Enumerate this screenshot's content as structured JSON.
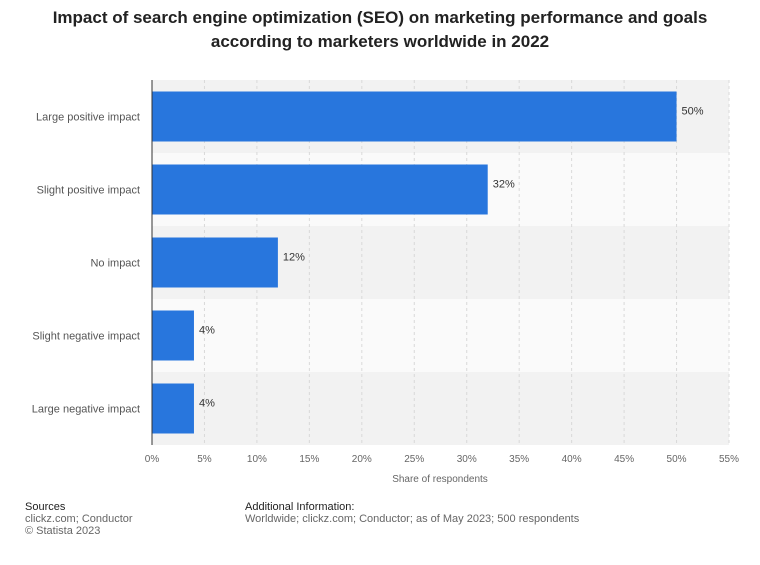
{
  "title_lines": [
    "Impact of search engine optimization (SEO) on marketing performance and goals",
    "according to marketers worldwide in 2022"
  ],
  "chart_data": {
    "type": "bar",
    "orientation": "horizontal",
    "categories": [
      "Large positive impact",
      "Slight positive impact",
      "No impact",
      "Slight negative impact",
      "Large negative impact"
    ],
    "values": [
      50,
      32,
      12,
      4,
      4
    ],
    "value_suffix": "%",
    "xlabel": "Share of respondents",
    "ylabel": "",
    "xlim": [
      0,
      55
    ],
    "xticks": [
      0,
      5,
      10,
      15,
      20,
      25,
      30,
      35,
      40,
      45,
      50,
      55
    ],
    "xtick_labels": [
      "0%",
      "5%",
      "10%",
      "15%",
      "20%",
      "25%",
      "30%",
      "35%",
      "40%",
      "45%",
      "50%",
      "55%"
    ],
    "grid": true,
    "bar_color": "#2876dd"
  },
  "footer": {
    "sources_head": "Sources",
    "sources_lines": [
      "clickz.com; Conductor",
      "© Statista 2023"
    ],
    "info_head": "Additional Information:",
    "info_lines": [
      "Worldwide; clickz.com; Conductor; as of May 2023; 500 respondents"
    ]
  }
}
